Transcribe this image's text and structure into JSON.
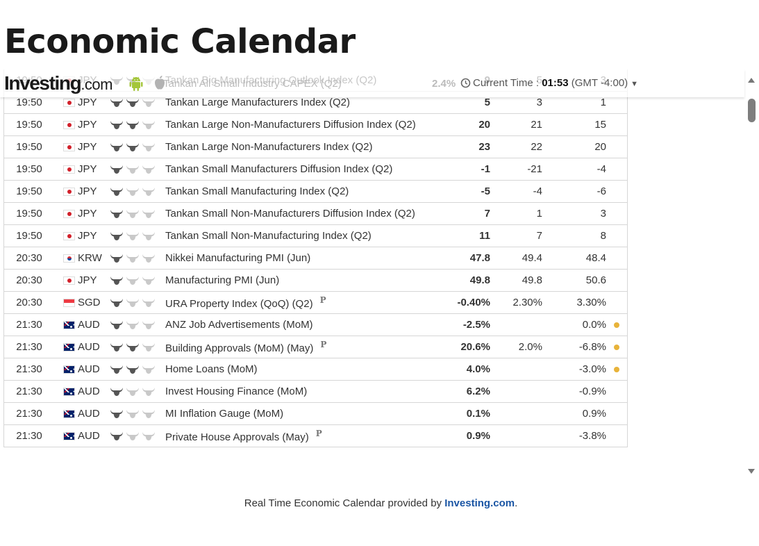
{
  "page": {
    "title": "Economic Calendar"
  },
  "header": {
    "logo_text": "Investing",
    "logo_suffix": ".com",
    "current_time_label": "Current Time :",
    "current_time_value": "01:53",
    "timezone": "(GMT -4:00)",
    "ghost_event": "Tankan All Small Industry CAPEX (Q2)",
    "ghost_actual": "2.4%"
  },
  "colors": {
    "positive": "#1b9e1b",
    "negative": "#dd1111",
    "revised_dot": "#e8b33a",
    "link": "#1a55a4"
  },
  "rows": [
    {
      "time": "19:50",
      "flag": "jp",
      "currency": "JPY",
      "importance": 2,
      "event": "Tankan Big Manufacturing Outlook Index (Q2)",
      "preliminary": false,
      "actual": "9",
      "actual_tone": "green",
      "forecast": "5",
      "previous": "3",
      "previous_tone": "",
      "revised": false
    },
    {
      "time": "19:50",
      "flag": "jp",
      "currency": "JPY",
      "importance": 2,
      "event": "Tankan Large Manufacturers Index (Q2)",
      "preliminary": false,
      "actual": "5",
      "actual_tone": "green",
      "forecast": "3",
      "previous": "1",
      "previous_tone": "",
      "revised": false
    },
    {
      "time": "19:50",
      "flag": "jp",
      "currency": "JPY",
      "importance": 2,
      "event": "Tankan Large Non-Manufacturers Diffusion Index (Q2)",
      "preliminary": false,
      "actual": "20",
      "actual_tone": "red",
      "forecast": "21",
      "previous": "15",
      "previous_tone": "",
      "revised": false
    },
    {
      "time": "19:50",
      "flag": "jp",
      "currency": "JPY",
      "importance": 2,
      "event": "Tankan Large Non-Manufacturers Index (Q2)",
      "preliminary": false,
      "actual": "23",
      "actual_tone": "green",
      "forecast": "22",
      "previous": "20",
      "previous_tone": "",
      "revised": false
    },
    {
      "time": "19:50",
      "flag": "jp",
      "currency": "JPY",
      "importance": 1,
      "event": "Tankan Small Manufacturers Diffusion Index (Q2)",
      "preliminary": false,
      "actual": "-1",
      "actual_tone": "green",
      "forecast": "-21",
      "previous": "-4",
      "previous_tone": "",
      "revised": false
    },
    {
      "time": "19:50",
      "flag": "jp",
      "currency": "JPY",
      "importance": 1,
      "event": "Tankan Small Manufacturing Index (Q2)",
      "preliminary": false,
      "actual": "-5",
      "actual_tone": "red",
      "forecast": "-4",
      "previous": "-6",
      "previous_tone": "",
      "revised": false
    },
    {
      "time": "19:50",
      "flag": "jp",
      "currency": "JPY",
      "importance": 1,
      "event": "Tankan Small Non-Manufacturers Diffusion Index (Q2)",
      "preliminary": false,
      "actual": "7",
      "actual_tone": "green",
      "forecast": "1",
      "previous": "3",
      "previous_tone": "",
      "revised": false
    },
    {
      "time": "19:50",
      "flag": "jp",
      "currency": "JPY",
      "importance": 1,
      "event": "Tankan Small Non-Manufacturing Index (Q2)",
      "preliminary": false,
      "actual": "11",
      "actual_tone": "green",
      "forecast": "7",
      "previous": "8",
      "previous_tone": "",
      "revised": false
    },
    {
      "time": "20:30",
      "flag": "kr",
      "currency": "KRW",
      "importance": 1,
      "event": "Nikkei Manufacturing PMI (Jun)",
      "preliminary": false,
      "actual": "47.8",
      "actual_tone": "red",
      "forecast": "49.4",
      "previous": "48.4",
      "previous_tone": "",
      "revised": false
    },
    {
      "time": "20:30",
      "flag": "jp",
      "currency": "JPY",
      "importance": 1,
      "event": "Manufacturing PMI (Jun)",
      "preliminary": false,
      "actual": "49.8",
      "actual_tone": "black",
      "forecast": "49.8",
      "previous": "50.6",
      "previous_tone": "",
      "revised": false
    },
    {
      "time": "20:30",
      "flag": "sg",
      "currency": "SGD",
      "importance": 1,
      "event": "URA Property Index (QoQ) (Q2)",
      "preliminary": true,
      "actual": "-0.40%",
      "actual_tone": "red",
      "forecast": "2.30%",
      "previous": "3.30%",
      "previous_tone": "",
      "revised": false
    },
    {
      "time": "21:30",
      "flag": "au",
      "currency": "AUD",
      "importance": 1,
      "event": "ANZ Job Advertisements (MoM)",
      "preliminary": false,
      "actual": "-2.5%",
      "actual_tone": "black",
      "forecast": "",
      "previous": "0.0%",
      "previous_tone": "red",
      "revised": true
    },
    {
      "time": "21:30",
      "flag": "au",
      "currency": "AUD",
      "importance": 2,
      "event": "Building Approvals (MoM) (May)",
      "preliminary": true,
      "actual": "20.6%",
      "actual_tone": "green",
      "forecast": "2.0%",
      "previous": "-6.8%",
      "previous_tone": "green",
      "revised": true
    },
    {
      "time": "21:30",
      "flag": "au",
      "currency": "AUD",
      "importance": 2,
      "event": "Home Loans (MoM)",
      "preliminary": false,
      "actual": "4.0%",
      "actual_tone": "black",
      "forecast": "",
      "previous": "-3.0%",
      "previous_tone": "green",
      "revised": true
    },
    {
      "time": "21:30",
      "flag": "au",
      "currency": "AUD",
      "importance": 1,
      "event": "Invest Housing Finance (MoM)",
      "preliminary": false,
      "actual": "6.2%",
      "actual_tone": "black",
      "forecast": "",
      "previous": "-0.9%",
      "previous_tone": "",
      "revised": false
    },
    {
      "time": "21:30",
      "flag": "au",
      "currency": "AUD",
      "importance": 1,
      "event": "MI Inflation Gauge (MoM)",
      "preliminary": false,
      "actual": "0.1%",
      "actual_tone": "black",
      "forecast": "",
      "previous": "0.9%",
      "previous_tone": "",
      "revised": false
    },
    {
      "time": "21:30",
      "flag": "au",
      "currency": "AUD",
      "importance": 1,
      "event": "Private House Approvals (May)",
      "preliminary": true,
      "actual": "0.9%",
      "actual_tone": "black",
      "forecast": "",
      "previous": "-3.8%",
      "previous_tone": "",
      "revised": false
    }
  ],
  "preliminary_mark": "P",
  "footer": {
    "text": "Real Time Economic Calendar provided by ",
    "link_text": "Investing.com",
    "suffix": "."
  }
}
